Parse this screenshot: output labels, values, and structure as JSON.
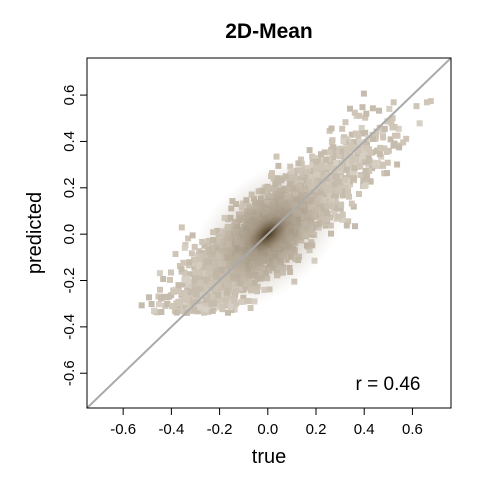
{
  "chart_data": {
    "type": "scatter",
    "title": "2D-Mean",
    "xlabel": "true",
    "ylabel": "predicted",
    "xlim": [
      -0.75,
      0.76
    ],
    "ylim": [
      -0.75,
      0.76
    ],
    "xticks": [
      -0.6,
      -0.4,
      -0.2,
      0.0,
      0.2,
      0.4,
      0.6
    ],
    "yticks": [
      -0.6,
      -0.4,
      -0.2,
      0.0,
      0.2,
      0.4,
      0.6
    ],
    "xtick_labels": [
      "-0.6",
      "-0.4",
      "-0.2",
      "0.0",
      "0.2",
      "0.4",
      "0.6"
    ],
    "ytick_labels": [
      "-0.6",
      "-0.4",
      "-0.2",
      "0.0",
      "0.2",
      "0.4",
      "0.6"
    ],
    "reference_line": {
      "slope": 1,
      "intercept": 0,
      "color": "#aaaaaa"
    },
    "annotation": "r = 0.46",
    "correlation": 0.46,
    "grid": false,
    "point_color": "#c8bfb0",
    "density_center_color": "#3a2a12",
    "x_range_of_points": [
      -0.55,
      0.68
    ],
    "y_range_of_points": [
      -0.34,
      0.65
    ],
    "density_peak": [
      0.0,
      0.0
    ]
  }
}
